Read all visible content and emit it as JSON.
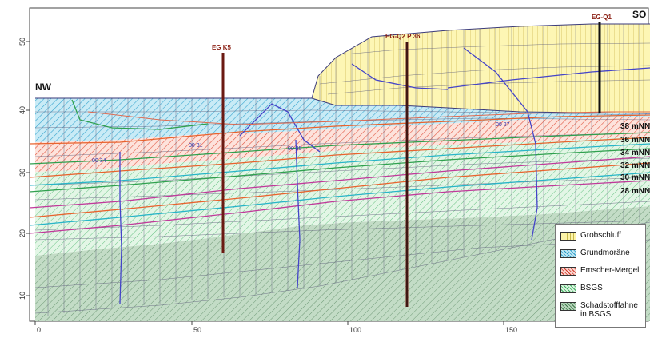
{
  "corner_labels": {
    "left": "NW",
    "right": "SO"
  },
  "x_ticks": [
    "0",
    "50",
    "100",
    "150"
  ],
  "y_ticks": [
    "50",
    "40",
    "30",
    "20",
    "10"
  ],
  "level_labels": [
    "38 mNN",
    "36 mNN",
    "34 mNN",
    "32 mNN",
    "30 mNN",
    "28 mNN"
  ],
  "wells": [
    {
      "label": "EG K5"
    },
    {
      "label": "EG-Q2 P 36"
    },
    {
      "label": "EG-Q1"
    }
  ],
  "contour_labels": [
    "00 27",
    "00 34",
    "00 35",
    "00 31"
  ],
  "legend": [
    {
      "label": "Grobschluff",
      "color": "#fdf4a8",
      "hatch": "#c8b84a"
    },
    {
      "label": "Grundmoräne",
      "color": "#bfe6f3",
      "hatch": "#2a9cc8"
    },
    {
      "label": "Emscher-Mergel",
      "color": "#fbd6d0",
      "hatch": "#d23a2a"
    },
    {
      "label": "BSGS",
      "color": "#d9f3df",
      "hatch": "#3cae5c"
    },
    {
      "label": "Schadstofffahne\nin BSGS",
      "color": "#b9d6bd",
      "hatch": "#3f7a4a"
    }
  ]
}
